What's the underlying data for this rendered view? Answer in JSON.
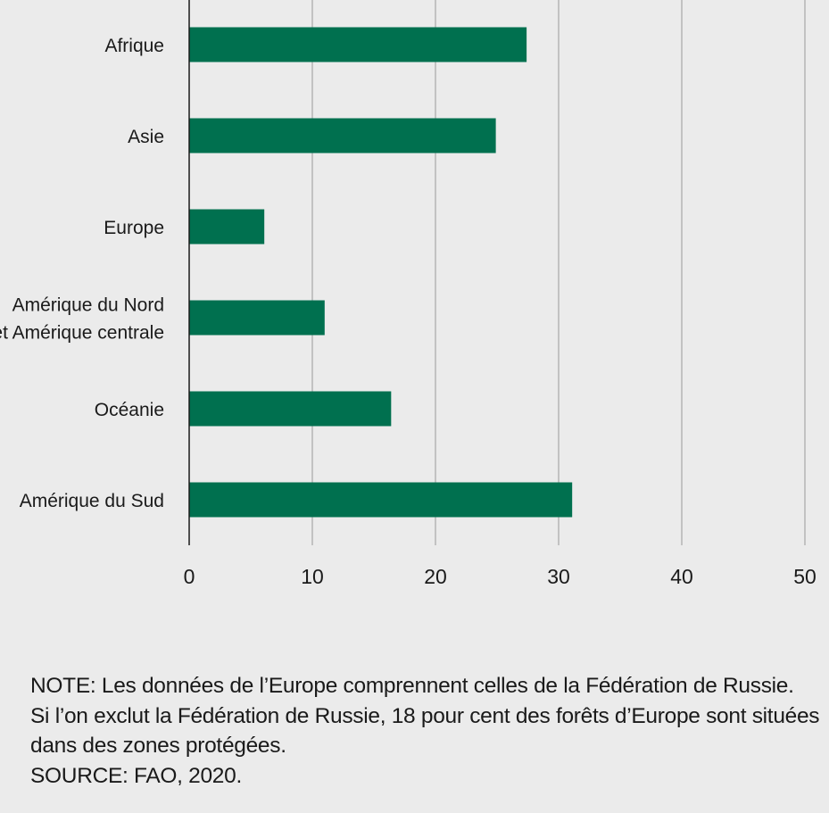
{
  "chart_data": {
    "type": "bar",
    "orientation": "horizontal",
    "title": "",
    "xlabel": "",
    "ylabel": "",
    "categories": [
      [
        "Afrique"
      ],
      [
        "Asie"
      ],
      [
        "Europe"
      ],
      [
        "Amérique du Nord",
        "et Amérique centrale"
      ],
      [
        "Océanie"
      ],
      [
        "Amérique du Sud"
      ]
    ],
    "values": [
      27.4,
      24.9,
      6.1,
      11.0,
      16.4,
      31.1
    ],
    "xlim": [
      0,
      50
    ],
    "ticks": [
      "0",
      "10",
      "20",
      "30",
      "40",
      "50"
    ],
    "grid": "vertical",
    "bar_color": "#00704f"
  },
  "notes": [
    "NOTE: Les données de l’Europe comprennent celles de la Fédération de Russie.",
    "Si l’on exclut la Fédération de Russie, 18 pour cent des forêts d’Europe sont situées",
    "dans des zones protégées.",
    "SOURCE: FAO, 2020."
  ]
}
